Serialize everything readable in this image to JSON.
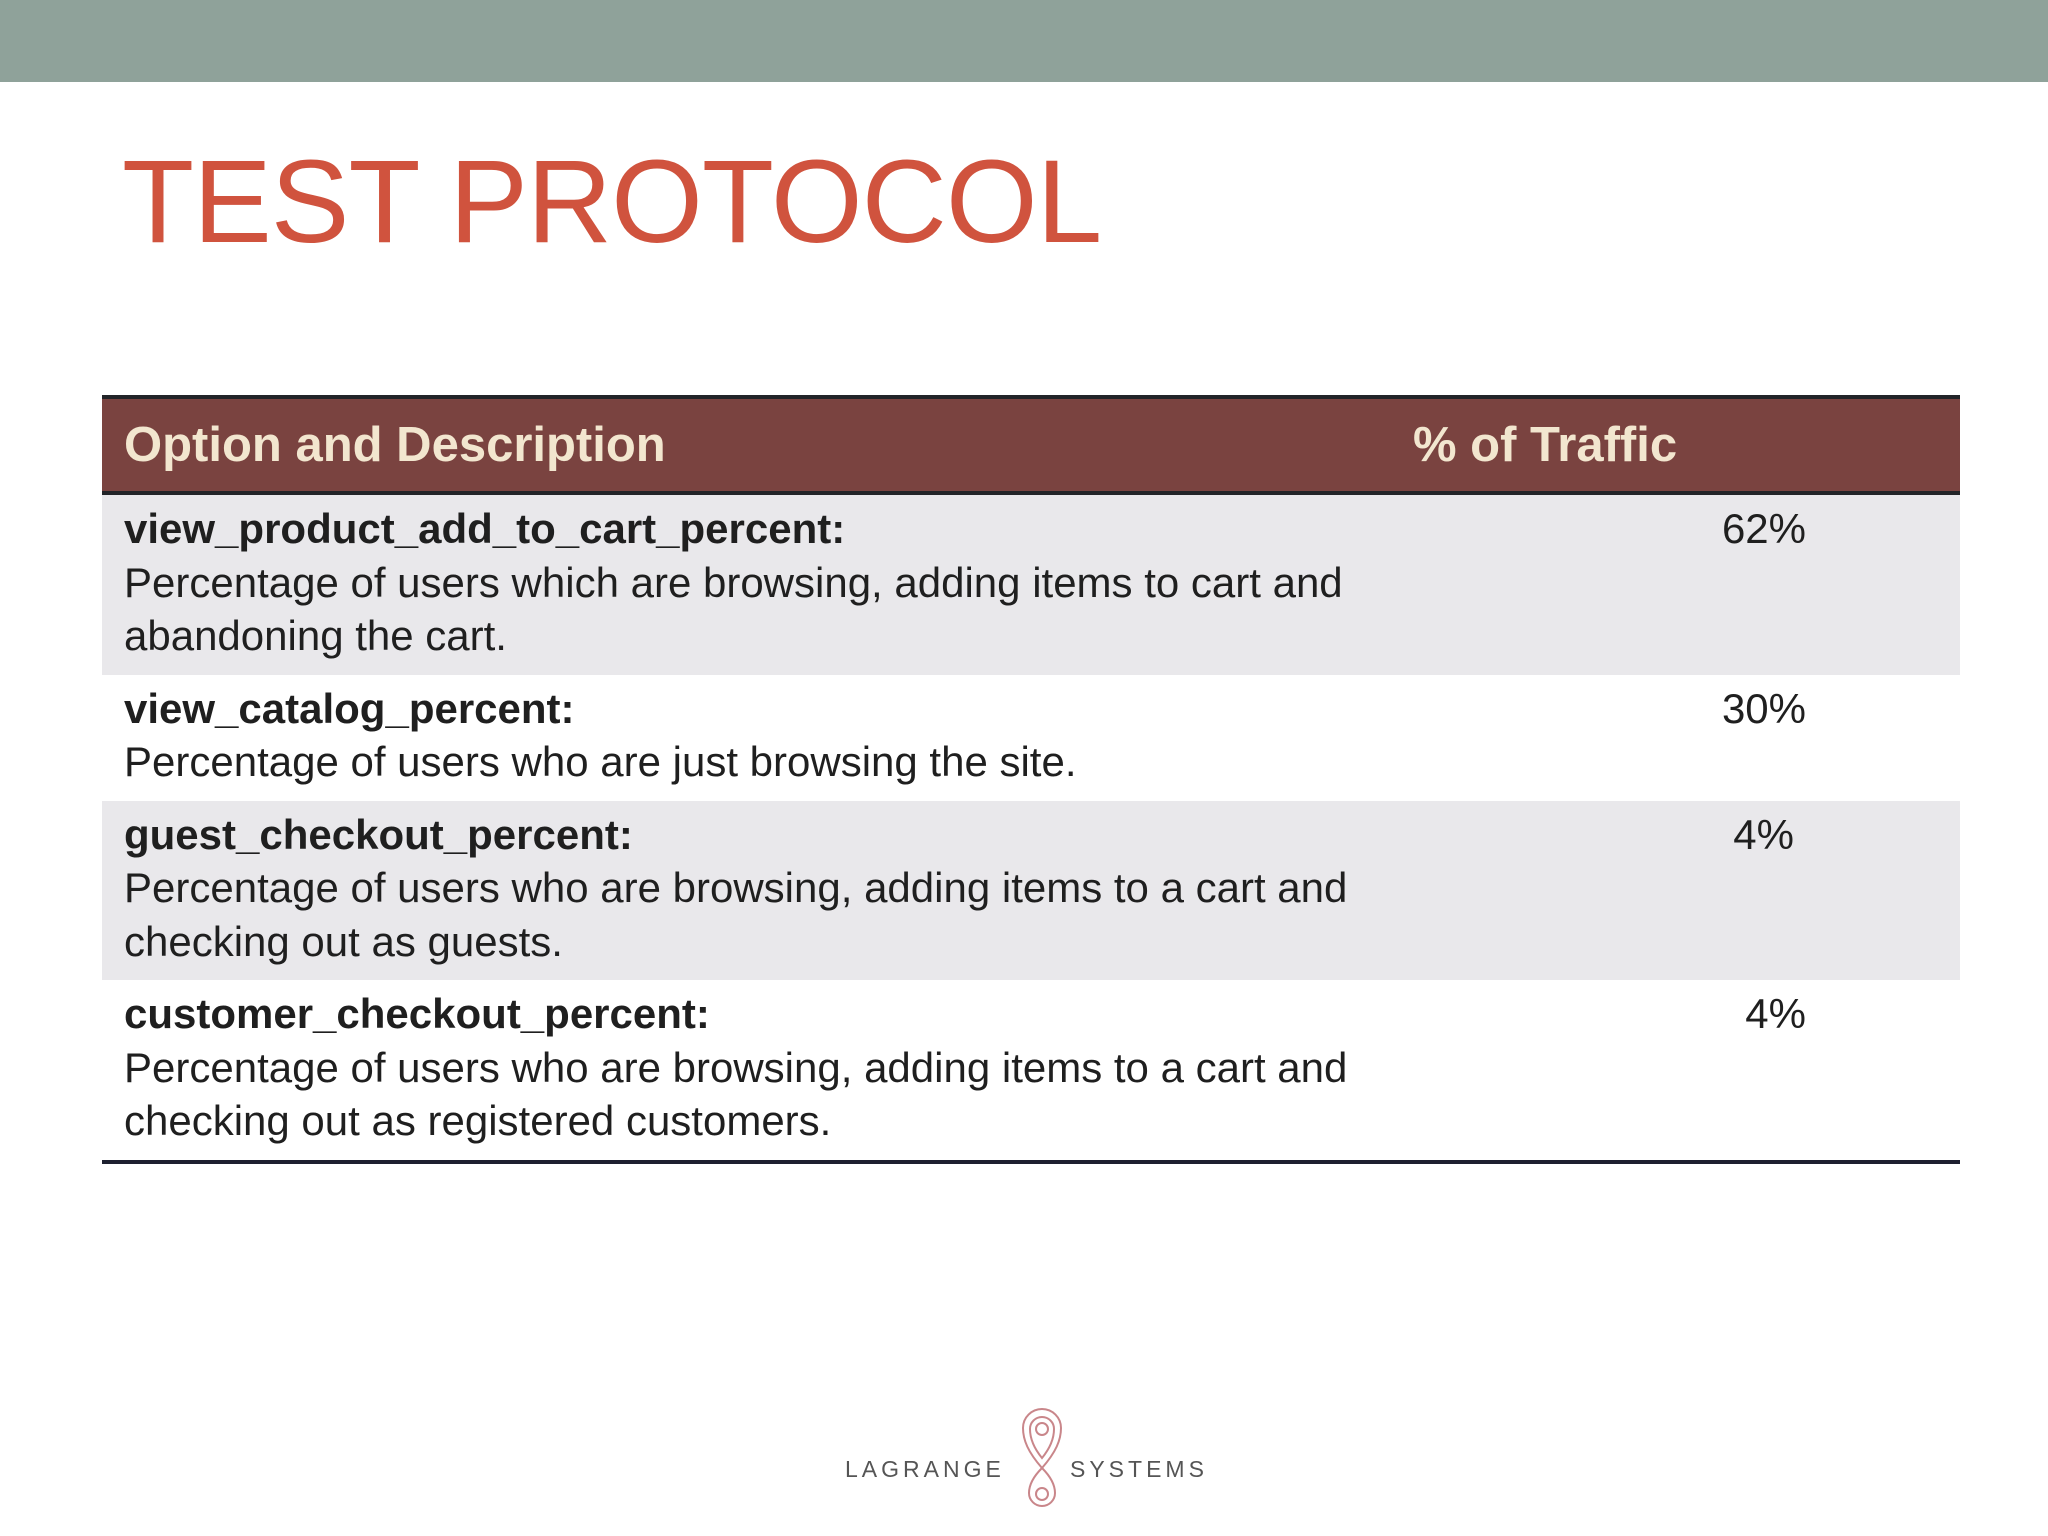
{
  "slide": {
    "title": "TEST PROTOCOL"
  },
  "table": {
    "headers": {
      "option": "Option and Description",
      "traffic": "% of Traffic"
    },
    "rows": [
      {
        "name": "view_product_add_to_cart_percent:",
        "description": "Percentage of users which are browsing, adding items to cart and abandoning the cart.",
        "traffic": "62%"
      },
      {
        "name": "view_catalog_percent:",
        "description": "Percentage of users who are just browsing the site.",
        "traffic": "30%"
      },
      {
        "name": "guest_checkout_percent:",
        "description": "Percentage of users who are browsing, adding items to a cart and checking out as guests.",
        "traffic": "4%"
      },
      {
        "name": "customer_checkout_percent:",
        "description": "Percentage of users who are browsing, adding items to a cart and checking out as registered customers.",
        "traffic": "4%"
      }
    ]
  },
  "footer": {
    "brand_left": "LAGRANGE",
    "brand_right": "SYSTEMS",
    "logo_icon": "lagrange-loop-logo-icon"
  },
  "colors": {
    "top_bar": "#8fa29a",
    "title": "#d0533e",
    "header_bg": "#7a4340",
    "header_text": "#f2e6cf",
    "row_shade": "#e9e8eb",
    "logo": "#c9868a"
  }
}
